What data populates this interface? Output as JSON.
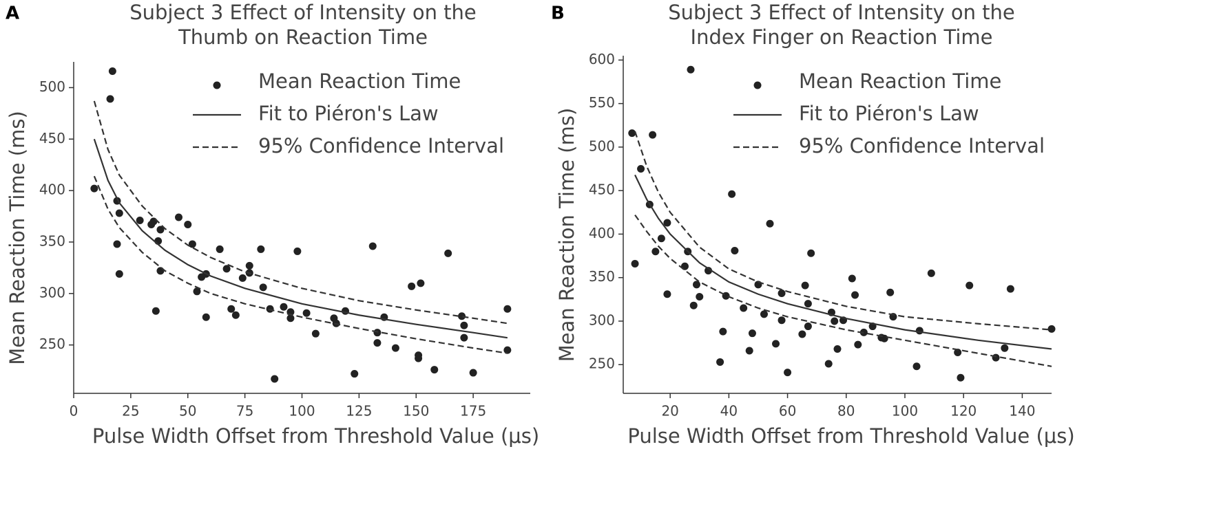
{
  "chart_data": [
    {
      "type": "scatter",
      "panel": "A",
      "title": [
        "Subject 3 Effect of Intensity on the",
        "Thumb on Reaction Time"
      ],
      "xlabel": "Pulse Width Offset from Threshold Value (μs)",
      "ylabel": "Mean Reaction Time (ms)",
      "xlim": [
        0,
        200
      ],
      "ylim": [
        203,
        525
      ],
      "xticks": [
        0,
        25,
        50,
        75,
        100,
        125,
        150,
        175
      ],
      "yticks": [
        250,
        300,
        350,
        400,
        450,
        500
      ],
      "series": [
        {
          "name": "Mean Reaction Time",
          "type": "scatter",
          "color": "#222222",
          "x": [
            9,
            16,
            17,
            19,
            19,
            20,
            20,
            29,
            34,
            35,
            36,
            37,
            38,
            38,
            46,
            50,
            52,
            54,
            56,
            58,
            58,
            64,
            67,
            69,
            71,
            74,
            77,
            77,
            82,
            83,
            86,
            88,
            92,
            95,
            95,
            98,
            102,
            106,
            114,
            115,
            119,
            123,
            131,
            133,
            133,
            136,
            141,
            148,
            151,
            151,
            152,
            158,
            164,
            170,
            171,
            171,
            175,
            190,
            190
          ],
          "values": [
            402,
            489,
            516,
            390,
            348,
            378,
            319,
            371,
            367,
            370,
            283,
            351,
            362,
            322,
            374,
            367,
            348,
            302,
            316,
            319,
            277,
            343,
            324,
            285,
            279,
            315,
            327,
            320,
            343,
            306,
            285,
            217,
            287,
            276,
            282,
            341,
            281,
            261,
            276,
            271,
            283,
            222,
            346,
            262,
            252,
            277,
            247,
            307,
            240,
            237,
            310,
            226,
            339,
            278,
            269,
            257,
            223,
            285,
            245
          ]
        },
        {
          "name": "Fit to Piéron's Law",
          "type": "line",
          "color": "#333333",
          "x": [
            9,
            15,
            20,
            30,
            40,
            50,
            60,
            75,
            100,
            125,
            150,
            175,
            190
          ],
          "values": [
            450,
            410,
            388,
            361,
            342,
            328,
            317,
            305,
            290,
            279,
            270,
            262,
            257
          ]
        },
        {
          "name": "95% Confidence Interval",
          "type": "band-lines",
          "color": "#333333",
          "x": [
            9,
            15,
            20,
            30,
            40,
            50,
            60,
            75,
            100,
            125,
            150,
            175,
            190
          ],
          "upper": [
            487,
            440,
            415,
            385,
            363,
            347,
            335,
            321,
            305,
            293,
            284,
            276,
            271
          ],
          "lower": [
            414,
            382,
            364,
            340,
            322,
            310,
            300,
            290,
            277,
            266,
            256,
            247,
            242
          ]
        }
      ]
    },
    {
      "type": "scatter",
      "panel": "B",
      "title": [
        "Subject 3 Effect of Intensity on the",
        "Index Finger on Reaction Time"
      ],
      "xlabel": "Pulse Width Offset from Threshold Value (μs)",
      "ylabel": "Mean Reaction Time (ms)",
      "xlim": [
        4,
        150
      ],
      "ylim": [
        217,
        605
      ],
      "xticks": [
        20,
        40,
        60,
        80,
        100,
        120,
        140
      ],
      "yticks": [
        250,
        300,
        350,
        400,
        450,
        500,
        550,
        600
      ],
      "series": [
        {
          "name": "Mean Reaction Time",
          "type": "scatter",
          "color": "#222222",
          "x": [
            7,
            8,
            10,
            13,
            14,
            15,
            17,
            19,
            19,
            25,
            26,
            28,
            29,
            30,
            33,
            37,
            38,
            39,
            41,
            42,
            45,
            47,
            48,
            50,
            52,
            54,
            56,
            58,
            58,
            60,
            65,
            66,
            67,
            67,
            68,
            74,
            75,
            76,
            77,
            79,
            82,
            83,
            84,
            86,
            89,
            92,
            93,
            95,
            96,
            104,
            105,
            109,
            118,
            119,
            122,
            131,
            134,
            136,
            150,
            27
          ],
          "values": [
            516,
            366,
            475,
            434,
            514,
            380,
            395,
            331,
            413,
            363,
            380,
            318,
            342,
            328,
            358,
            253,
            288,
            329,
            446,
            381,
            315,
            266,
            286,
            342,
            308,
            412,
            274,
            332,
            301,
            241,
            285,
            341,
            320,
            294,
            378,
            251,
            310,
            300,
            268,
            301,
            349,
            330,
            273,
            287,
            294,
            281,
            280,
            333,
            305,
            248,
            289,
            355,
            264,
            235,
            341,
            258,
            269,
            337,
            291,
            589
          ]
        },
        {
          "name": "Fit to Piéron's Law",
          "type": "line",
          "color": "#333333",
          "x": [
            8,
            12,
            16,
            20,
            30,
            40,
            50,
            60,
            80,
            100,
            125,
            150
          ],
          "values": [
            468,
            440,
            418,
            400,
            367,
            345,
            331,
            320,
            303,
            290,
            278,
            268
          ]
        },
        {
          "name": "95% Confidence Interval",
          "type": "band-lines",
          "color": "#333333",
          "x": [
            8,
            12,
            16,
            20,
            30,
            40,
            50,
            60,
            80,
            100,
            125,
            150
          ],
          "upper": [
            518,
            478,
            448,
            425,
            385,
            360,
            345,
            334,
            317,
            305,
            297,
            290
          ],
          "lower": [
            422,
            403,
            386,
            372,
            345,
            328,
            315,
            305,
            290,
            278,
            263,
            248
          ]
        }
      ]
    }
  ]
}
